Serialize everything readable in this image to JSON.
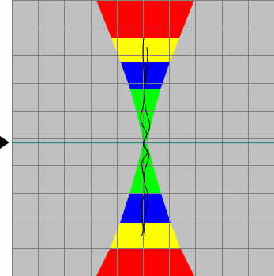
{
  "grid": {
    "background_color": "#c0c0c0",
    "line_color": "#808080",
    "columns": 10,
    "rows": 10
  },
  "bands": [
    {
      "name": "red",
      "color": "#ff0000"
    },
    {
      "name": "yellow",
      "color": "#ffff00"
    },
    {
      "name": "blue",
      "color": "#0000ff"
    },
    {
      "name": "green",
      "color": "#00ff00"
    }
  ],
  "axis": {
    "color": "#2e8b8b"
  },
  "marker": {
    "icon": "triangle-right-icon",
    "color": "#000000"
  },
  "trace": {
    "color": "#000000"
  }
}
